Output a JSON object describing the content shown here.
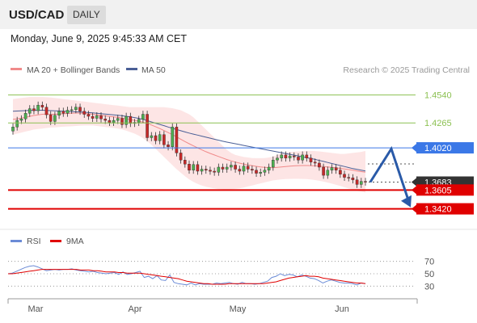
{
  "header": {
    "symbol": "USD/CAD",
    "timeframe": "DAILY"
  },
  "datetime": "Monday, June 9, 2025 9:45:33 AM CET",
  "legend": {
    "bb_label": "MA 20 + Bollinger Bands",
    "ma50_label": "MA 50",
    "credit": "Research © 2025 Trading Central"
  },
  "colors": {
    "bb_band": "#fde0e0",
    "ma20": "#f08a8a",
    "ma50": "#4a5f96",
    "resistance": "#8cc152",
    "pivot": "#3b78e7",
    "support": "#e00000",
    "current": "#333333",
    "rsi": "#6b8bd6",
    "rsi_ma": "#e00000",
    "arrow": "#2a5aa8",
    "bull": "#4caf50",
    "bear": "#c62828"
  },
  "rsi_legend": {
    "rsi_label": "RSI",
    "ma_label": "9MA"
  },
  "chart_data": [
    {
      "type": "candlestick",
      "x_tick_labels": [
        "Mar",
        "Apr",
        "May",
        "Jun"
      ],
      "ylim": [
        1.325,
        1.468
      ],
      "levels": [
        {
          "label": "1.4540",
          "value": 1.454,
          "kind": "resistance"
        },
        {
          "label": "1.4265",
          "value": 1.4265,
          "kind": "resistance"
        },
        {
          "label": "1.4020",
          "value": 1.402,
          "kind": "pivot"
        },
        {
          "label": "1.3683",
          "value": 1.3683,
          "kind": "current"
        },
        {
          "label": "1.3605",
          "value": 1.3605,
          "kind": "support"
        },
        {
          "label": "1.3420",
          "value": 1.342,
          "kind": "support"
        }
      ],
      "close": [
        1.4225,
        1.429,
        1.4305,
        1.436,
        1.4405,
        1.4385,
        1.444,
        1.442,
        1.4345,
        1.428,
        1.434,
        1.438,
        1.436,
        1.439,
        1.4395,
        1.442,
        1.438,
        1.435,
        1.433,
        1.431,
        1.4335,
        1.4305,
        1.429,
        1.427,
        1.429,
        1.431,
        1.425,
        1.433,
        1.426,
        1.427,
        1.43,
        1.435,
        1.412,
        1.414,
        1.409,
        1.415,
        1.405,
        1.403,
        1.4225,
        1.397,
        1.39,
        1.386,
        1.38,
        1.3855,
        1.379,
        1.381,
        1.38,
        1.379,
        1.378,
        1.383,
        1.381,
        1.383,
        1.385,
        1.381,
        1.379,
        1.384,
        1.381,
        1.38,
        1.377,
        1.378,
        1.38,
        1.383,
        1.39,
        1.392,
        1.395,
        1.392,
        1.394,
        1.393,
        1.39,
        1.395,
        1.392,
        1.388,
        1.387,
        1.383,
        1.375,
        1.38,
        1.3825,
        1.38,
        1.376,
        1.373,
        1.3725,
        1.3705,
        1.366,
        1.369,
        1.3683
      ],
      "ma20": [
        1.43,
        1.4305,
        1.4312,
        1.432,
        1.433,
        1.4338,
        1.4345,
        1.435,
        1.4352,
        1.435,
        1.435,
        1.4352,
        1.4355,
        1.4358,
        1.436,
        1.4362,
        1.4362,
        1.436,
        1.4355,
        1.435,
        1.4345,
        1.434,
        1.4335,
        1.433,
        1.4325,
        1.432,
        1.4312,
        1.4305,
        1.4298,
        1.429,
        1.4282,
        1.4272,
        1.426,
        1.4245,
        1.4228,
        1.421,
        1.419,
        1.417,
        1.415,
        1.4128,
        1.4105,
        1.4082,
        1.406,
        1.404,
        1.402,
        1.4,
        1.3982,
        1.3965,
        1.395,
        1.3935,
        1.392,
        1.3905,
        1.3892,
        1.388,
        1.387,
        1.386,
        1.3852,
        1.3845,
        1.3838,
        1.3832,
        1.3828,
        1.3825,
        1.3825,
        1.3828,
        1.3832,
        1.3836,
        1.384,
        1.3843,
        1.3845,
        1.3846,
        1.3846,
        1.3845,
        1.3843,
        1.384,
        1.3836,
        1.3832,
        1.3828,
        1.3823,
        1.3818,
        1.3812,
        1.3806,
        1.38,
        1.3792,
        1.3786,
        1.378
      ],
      "bb_upper": [
        1.45,
        1.4505,
        1.451,
        1.4515,
        1.452,
        1.452,
        1.452,
        1.452,
        1.4518,
        1.4515,
        1.451,
        1.4505,
        1.45,
        1.4495,
        1.449,
        1.4485,
        1.448,
        1.4475,
        1.447,
        1.4465,
        1.446,
        1.4455,
        1.445,
        1.4445,
        1.444,
        1.4435,
        1.443,
        1.4425,
        1.442,
        1.442,
        1.442,
        1.442,
        1.442,
        1.442,
        1.442,
        1.442,
        1.442,
        1.4415,
        1.441,
        1.44,
        1.439,
        1.437,
        1.435,
        1.432,
        1.428,
        1.424,
        1.42,
        1.416,
        1.412,
        1.408,
        1.404,
        1.4,
        1.397,
        1.395,
        1.394,
        1.393,
        1.3925,
        1.392,
        1.3918,
        1.3918,
        1.392,
        1.3925,
        1.3935,
        1.395,
        1.3965,
        1.3975,
        1.398,
        1.3982,
        1.3985,
        1.3987,
        1.399,
        1.399,
        1.3988,
        1.3985,
        1.398,
        1.3975,
        1.397,
        1.3965,
        1.396,
        1.396,
        1.3965,
        1.397,
        1.3975,
        1.398,
        1.399
      ],
      "bb_lower": [
        1.415,
        1.416,
        1.417,
        1.418,
        1.419,
        1.42,
        1.4205,
        1.421,
        1.4215,
        1.422,
        1.4222,
        1.4225,
        1.4228,
        1.423,
        1.4232,
        1.4235,
        1.4238,
        1.424,
        1.424,
        1.424,
        1.4235,
        1.423,
        1.4225,
        1.422,
        1.4215,
        1.421,
        1.42,
        1.419,
        1.4175,
        1.416,
        1.414,
        1.4115,
        1.4085,
        1.405,
        1.401,
        1.397,
        1.393,
        1.389,
        1.385,
        1.381,
        1.3775,
        1.374,
        1.371,
        1.3685,
        1.3665,
        1.365,
        1.3638,
        1.3628,
        1.362,
        1.3615,
        1.3612,
        1.361,
        1.3612,
        1.3616,
        1.3622,
        1.363,
        1.364,
        1.365,
        1.366,
        1.367,
        1.368,
        1.369,
        1.37,
        1.3705,
        1.371,
        1.3712,
        1.3714,
        1.3715,
        1.3715,
        1.3714,
        1.3712,
        1.3708,
        1.3703,
        1.3696,
        1.3688,
        1.3678,
        1.3668,
        1.3656,
        1.3645,
        1.3632,
        1.362,
        1.3608,
        1.3598,
        1.359,
        1.358
      ],
      "ma50": [
        1.438,
        1.4382,
        1.4384,
        1.4386,
        1.4388,
        1.439,
        1.439,
        1.439,
        1.4388,
        1.4386,
        1.4384,
        1.4382,
        1.438,
        1.4378,
        1.4376,
        1.4374,
        1.4372,
        1.437,
        1.4367,
        1.4364,
        1.436,
        1.4356,
        1.4352,
        1.4348,
        1.4344,
        1.434,
        1.4336,
        1.433,
        1.4325,
        1.4318,
        1.431,
        1.43,
        1.4288,
        1.4275,
        1.4262,
        1.425,
        1.4238,
        1.4225,
        1.4212,
        1.42,
        1.4188,
        1.4176,
        1.4165,
        1.4155,
        1.4145,
        1.4135,
        1.4125,
        1.4115,
        1.4105,
        1.4095,
        1.4085,
        1.4076,
        1.4068,
        1.406,
        1.4052,
        1.4044,
        1.4036,
        1.4028,
        1.402,
        1.4012,
        1.4004,
        1.3996,
        1.3988,
        1.398,
        1.3972,
        1.3964,
        1.3956,
        1.3948,
        1.394,
        1.3932,
        1.3924,
        1.3915,
        1.3906,
        1.3896,
        1.3886,
        1.3876,
        1.3866,
        1.3856,
        1.3846,
        1.3836,
        1.3826,
        1.3816,
        1.3808,
        1.38,
        1.3793
      ]
    },
    {
      "type": "line",
      "name": "RSI",
      "y_tick_labels": [
        "70",
        "50",
        "30"
      ],
      "ylim": [
        20,
        80
      ],
      "levels": [
        70,
        50,
        30
      ],
      "rsi": [
        50,
        51,
        54,
        57,
        60,
        62,
        63,
        61,
        58,
        55,
        56,
        57,
        56,
        57,
        57,
        58,
        56,
        55,
        54,
        53,
        54,
        52,
        51,
        50,
        51,
        52,
        49,
        53,
        49,
        50,
        52,
        54,
        44,
        46,
        42,
        47,
        40,
        39,
        48,
        36,
        34,
        33,
        32,
        35,
        32,
        34,
        33,
        33,
        33,
        35,
        34,
        35,
        36,
        34,
        33,
        36,
        34,
        34,
        33,
        34,
        36,
        38,
        44,
        46,
        50,
        47,
        49,
        48,
        45,
        48,
        46,
        43,
        42,
        39,
        35,
        38,
        40,
        38,
        36,
        35,
        35,
        34,
        32,
        35,
        34
      ],
      "rsi_ma": [
        50,
        50,
        51,
        52,
        53,
        54,
        55,
        56,
        57,
        57,
        57,
        57,
        57,
        57,
        57,
        57,
        57,
        56,
        56,
        56,
        55,
        55,
        54,
        53,
        53,
        53,
        52,
        52,
        51,
        51,
        51,
        51,
        50,
        49,
        48,
        47,
        46,
        45,
        44,
        43,
        42,
        40,
        38,
        37,
        36,
        35,
        34,
        34,
        33,
        33,
        33,
        33,
        34,
        34,
        34,
        34,
        34,
        34,
        34,
        34,
        34,
        35,
        36,
        37,
        39,
        41,
        43,
        44,
        45,
        46,
        47,
        46,
        46,
        45,
        43,
        42,
        41,
        40,
        39,
        38,
        37,
        36,
        35,
        35,
        34
      ]
    }
  ]
}
